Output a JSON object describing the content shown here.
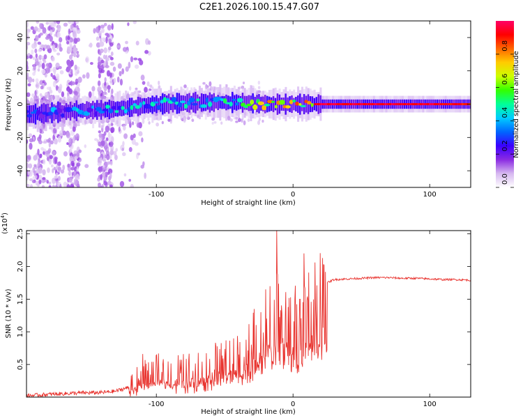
{
  "title": "C2E1.2026.100.15.47.G07",
  "chart_data": [
    {
      "type": "heatmap",
      "title": "C2E1.2026.100.15.47.G07",
      "xlabel": "Height of straight line (km)",
      "ylabel": "Frequency (Hz)",
      "xlim": [
        -195,
        130
      ],
      "ylim": [
        -50,
        50
      ],
      "x_ticks": [
        -100,
        0,
        100
      ],
      "y_ticks": [
        -40,
        -20,
        0,
        20,
        40
      ],
      "x_tick_labels": [
        "-100",
        "0",
        "100"
      ],
      "y_tick_labels": [
        "-40",
        "-20",
        "0",
        "20",
        "40"
      ],
      "colorbar": {
        "label": "Normalized spectral amplitude",
        "range": [
          0,
          1
        ],
        "ticks": [
          0.0,
          0.2,
          0.4,
          0.6,
          0.8
        ],
        "tick_labels": [
          "0.0",
          "0.2",
          "0.4",
          "0.6",
          "0.8"
        ],
        "colormap": [
          "#ffffff",
          "#d6b8f0",
          "#8b2be2",
          "#3a00ff",
          "#0066ff",
          "#00ccff",
          "#00ff99",
          "#33ff00",
          "#ccff00",
          "#ffcc00",
          "#ff6600",
          "#ff0000",
          "#ff0066"
        ]
      },
      "ridge": {
        "description_free": true,
        "x": [
          -190,
          -160,
          -130,
          -100,
          -70,
          -40,
          -20,
          0,
          20,
          60,
          100,
          130
        ],
        "center_hz": [
          -6,
          -4,
          -3,
          0,
          1,
          1,
          0,
          0,
          0,
          0,
          0,
          0
        ],
        "peak_amplitude": [
          0.35,
          0.4,
          0.45,
          0.5,
          0.5,
          0.55,
          0.75,
          0.8,
          0.95,
          0.95,
          0.95,
          0.9
        ]
      }
    },
    {
      "type": "line",
      "xlabel": "Height of straight line (km)",
      "ylabel": "SNR (10 * v/v)",
      "multiplier_label": "(x10",
      "multiplier_exp": "4",
      "xlim": [
        -195,
        130
      ],
      "ylim": [
        0,
        2.55
      ],
      "x_ticks": [
        -100,
        0,
        100
      ],
      "y_ticks": [
        0.5,
        1.0,
        1.5,
        2.0,
        2.5
      ],
      "x_tick_labels": [
        "-100",
        "0",
        "100"
      ],
      "y_tick_labels": [
        "0.5",
        "1.0",
        "1.5",
        "2.0",
        "2.5"
      ],
      "series": [
        {
          "name": "SNR",
          "color": "#e8322d",
          "x": [
            -195,
            -180,
            -160,
            -140,
            -130,
            -120,
            -110,
            -100,
            -90,
            -80,
            -70,
            -60,
            -50,
            -40,
            -30,
            -25,
            -20,
            -15,
            -10,
            -5,
            0,
            5,
            10,
            15,
            20,
            25,
            30,
            40,
            50,
            60,
            70,
            80,
            90,
            100,
            110,
            120,
            130
          ],
          "y": [
            0.02,
            0.04,
            0.06,
            0.07,
            0.09,
            0.15,
            0.28,
            0.35,
            0.38,
            0.36,
            0.4,
            0.45,
            0.5,
            0.6,
            0.75,
            0.9,
            1.05,
            1.15,
            1.2,
            1.15,
            1.05,
            1.0,
            1.1,
            1.35,
            1.6,
            1.75,
            1.8,
            1.81,
            1.82,
            1.83,
            1.83,
            1.82,
            1.82,
            1.81,
            1.8,
            1.8,
            1.79
          ]
        }
      ],
      "spikes": [
        {
          "x": -110,
          "y": 0.66
        },
        {
          "x": -20,
          "y": 1.65
        },
        {
          "x": -12,
          "y": 2.55
        },
        {
          "x": 8,
          "y": 2.2
        },
        {
          "x": 5,
          "y": 1.5
        }
      ]
    }
  ]
}
